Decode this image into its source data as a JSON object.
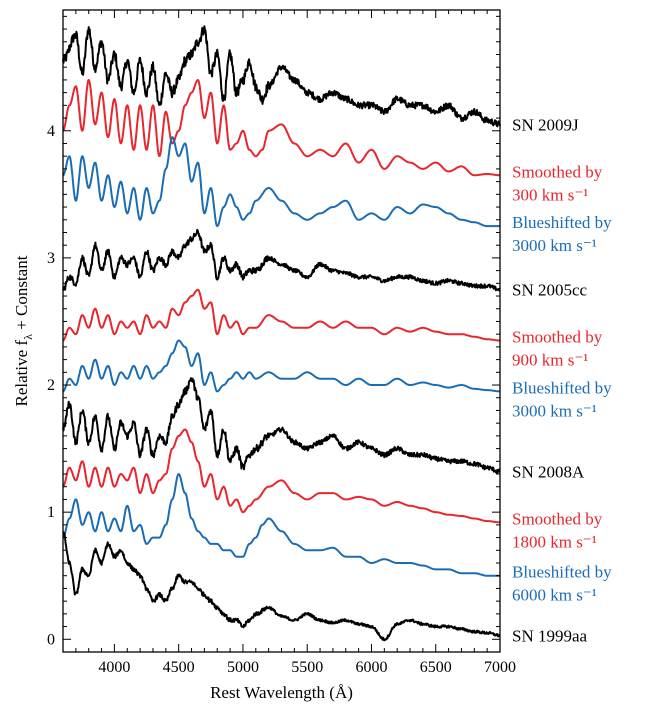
{
  "chart_data": {
    "type": "line",
    "xlabel": "Rest Wavelength (Å)",
    "ylabel_main": "Relative f",
    "ylabel_sub": "λ",
    "ylabel_rest": " + Constant",
    "xlim": [
      3600,
      7000
    ],
    "ylim": [
      -0.1,
      4.95
    ],
    "x_ticks": [
      4000,
      4500,
      5000,
      5500,
      6000,
      6500,
      7000
    ],
    "x_tick_labels": [
      "4000",
      "4500",
      "5000",
      "5500",
      "6000",
      "6500",
      "7000"
    ],
    "y_ticks": [
      0,
      1,
      2,
      3,
      4
    ],
    "y_tick_labels": [
      "0",
      "1",
      "2",
      "3",
      "4"
    ],
    "colors": {
      "observed": "#000000",
      "smoothed": "#e8262e",
      "blueshifted": "#1a6db5"
    },
    "series": [
      {
        "name": "SN 2009J",
        "role": "observed",
        "label": [
          "SN 2009J"
        ],
        "noise": 0.05,
        "x": [
          3600,
          3700,
          3750,
          3800,
          3850,
          3900,
          3950,
          4000,
          4050,
          4100,
          4150,
          4200,
          4250,
          4300,
          4350,
          4400,
          4450,
          4500,
          4550,
          4600,
          4650,
          4700,
          4750,
          4800,
          4850,
          4900,
          4950,
          5000,
          5050,
          5100,
          5150,
          5200,
          5300,
          5400,
          5500,
          5600,
          5700,
          5800,
          5900,
          6000,
          6100,
          6200,
          6300,
          6400,
          6500,
          6600,
          6700,
          6800,
          6900,
          7000
        ],
        "y": [
          4.55,
          4.75,
          4.45,
          4.8,
          4.5,
          4.7,
          4.4,
          4.6,
          4.35,
          4.55,
          4.3,
          4.55,
          4.3,
          4.5,
          4.2,
          4.45,
          4.3,
          4.4,
          4.55,
          4.6,
          4.7,
          4.8,
          4.45,
          4.6,
          4.25,
          4.6,
          4.3,
          4.4,
          4.55,
          4.35,
          4.25,
          4.35,
          4.5,
          4.4,
          4.3,
          4.25,
          4.3,
          4.25,
          4.2,
          4.2,
          4.15,
          4.25,
          4.2,
          4.2,
          4.15,
          4.2,
          4.1,
          4.15,
          4.08,
          4.05
        ]
      },
      {
        "name": "Smoothed by 300 km s⁻¹",
        "role": "smoothed",
        "label": [
          "Smoothed by",
          "300 km s⁻¹"
        ],
        "noise": 0,
        "x": [
          3600,
          3650,
          3700,
          3750,
          3800,
          3850,
          3900,
          3950,
          4000,
          4050,
          4100,
          4150,
          4200,
          4250,
          4300,
          4350,
          4400,
          4450,
          4500,
          4550,
          4600,
          4650,
          4700,
          4750,
          4800,
          4850,
          4900,
          4950,
          5000,
          5050,
          5100,
          5150,
          5200,
          5300,
          5400,
          5500,
          5600,
          5700,
          5800,
          5900,
          6000,
          6100,
          6200,
          6300,
          6400,
          6500,
          6600,
          6700,
          6800,
          6900,
          7000
        ],
        "y": [
          4.0,
          4.2,
          4.35,
          4.0,
          4.4,
          4.05,
          4.3,
          3.95,
          4.25,
          3.9,
          4.2,
          3.85,
          4.2,
          3.85,
          4.2,
          3.8,
          4.15,
          3.9,
          4.0,
          4.2,
          4.3,
          4.4,
          4.1,
          4.3,
          3.9,
          4.2,
          3.85,
          3.9,
          4.0,
          3.85,
          3.8,
          3.85,
          4.0,
          4.05,
          3.9,
          3.8,
          3.85,
          3.8,
          3.9,
          3.75,
          3.85,
          3.7,
          3.8,
          3.75,
          3.7,
          3.75,
          3.68,
          3.72,
          3.65,
          3.66,
          3.65
        ]
      },
      {
        "name": "Blueshifted by 3000 km s⁻¹",
        "role": "blueshifted",
        "label": [
          "Blueshifted by",
          "3000 km s⁻¹"
        ],
        "noise": 0,
        "x": [
          3600,
          3650,
          3700,
          3750,
          3800,
          3850,
          3900,
          3950,
          4000,
          4050,
          4100,
          4150,
          4200,
          4250,
          4300,
          4350,
          4400,
          4450,
          4500,
          4550,
          4600,
          4650,
          4700,
          4750,
          4800,
          4850,
          4900,
          4950,
          5000,
          5050,
          5100,
          5200,
          5300,
          5400,
          5500,
          5600,
          5700,
          5800,
          5900,
          6000,
          6100,
          6200,
          6300,
          6400,
          6500,
          6600,
          6700,
          6800,
          6900,
          7000
        ],
        "y": [
          3.65,
          3.8,
          3.45,
          3.8,
          3.55,
          3.75,
          3.45,
          3.65,
          3.4,
          3.6,
          3.35,
          3.55,
          3.3,
          3.55,
          3.35,
          3.45,
          3.7,
          3.95,
          3.8,
          3.9,
          3.6,
          3.75,
          3.35,
          3.55,
          3.25,
          3.4,
          3.5,
          3.4,
          3.3,
          3.35,
          3.45,
          3.55,
          3.45,
          3.35,
          3.3,
          3.35,
          3.4,
          3.45,
          3.3,
          3.35,
          3.3,
          3.4,
          3.35,
          3.42,
          3.4,
          3.35,
          3.3,
          3.28,
          3.25,
          3.25
        ]
      },
      {
        "name": "SN 2005cc",
        "role": "observed",
        "label": [
          "SN 2005cc"
        ],
        "noise": 0.03,
        "x": [
          3600,
          3650,
          3700,
          3750,
          3800,
          3850,
          3900,
          3950,
          4000,
          4050,
          4100,
          4150,
          4200,
          4250,
          4300,
          4350,
          4400,
          4450,
          4500,
          4550,
          4600,
          4650,
          4700,
          4750,
          4800,
          4850,
          4900,
          4950,
          5000,
          5050,
          5100,
          5200,
          5300,
          5400,
          5500,
          5600,
          5700,
          5800,
          5900,
          6000,
          6100,
          6200,
          6300,
          6400,
          6500,
          6600,
          6700,
          6800,
          6900,
          7000
        ],
        "y": [
          2.75,
          2.85,
          2.8,
          3.0,
          2.85,
          3.1,
          2.9,
          3.05,
          2.85,
          3.0,
          2.95,
          3.0,
          2.85,
          3.05,
          2.9,
          3.0,
          2.95,
          3.05,
          3.0,
          3.1,
          3.15,
          3.2,
          3.05,
          3.1,
          2.85,
          3.0,
          2.9,
          2.95,
          2.85,
          2.9,
          2.9,
          3.0,
          2.95,
          2.9,
          2.85,
          2.95,
          2.9,
          2.88,
          2.85,
          2.85,
          2.82,
          2.85,
          2.85,
          2.82,
          2.8,
          2.82,
          2.8,
          2.78,
          2.78,
          2.75
        ]
      },
      {
        "name": "Smoothed by 900 km s⁻¹",
        "role": "smoothed",
        "label": [
          "Smoothed by",
          "900 km s⁻¹"
        ],
        "noise": 0,
        "x": [
          3600,
          3650,
          3700,
          3750,
          3800,
          3850,
          3900,
          3950,
          4000,
          4050,
          4100,
          4150,
          4200,
          4250,
          4300,
          4350,
          4400,
          4450,
          4500,
          4550,
          4600,
          4650,
          4700,
          4750,
          4800,
          4850,
          4900,
          4950,
          5000,
          5050,
          5100,
          5200,
          5300,
          5400,
          5500,
          5600,
          5700,
          5800,
          5900,
          6000,
          6100,
          6200,
          6300,
          6400,
          6500,
          6600,
          6700,
          6800,
          6900,
          7000
        ],
        "y": [
          2.35,
          2.45,
          2.4,
          2.55,
          2.45,
          2.6,
          2.45,
          2.55,
          2.4,
          2.5,
          2.45,
          2.5,
          2.4,
          2.55,
          2.45,
          2.5,
          2.45,
          2.6,
          2.55,
          2.65,
          2.7,
          2.75,
          2.6,
          2.65,
          2.4,
          2.55,
          2.45,
          2.5,
          2.4,
          2.45,
          2.45,
          2.55,
          2.5,
          2.45,
          2.45,
          2.5,
          2.45,
          2.5,
          2.45,
          2.45,
          2.4,
          2.45,
          2.42,
          2.45,
          2.42,
          2.4,
          2.4,
          2.38,
          2.36,
          2.35
        ]
      },
      {
        "name": "Blueshifted by 3000 km s⁻¹",
        "role": "blueshifted",
        "label": [
          "Blueshifted by",
          "3000 km s⁻¹"
        ],
        "noise": 0,
        "x": [
          3600,
          3650,
          3700,
          3750,
          3800,
          3850,
          3900,
          3950,
          4000,
          4050,
          4100,
          4150,
          4200,
          4250,
          4300,
          4350,
          4400,
          4450,
          4500,
          4550,
          4600,
          4650,
          4700,
          4750,
          4800,
          4850,
          4900,
          4950,
          5000,
          5050,
          5100,
          5200,
          5300,
          5400,
          5500,
          5600,
          5700,
          5800,
          5900,
          6000,
          6100,
          6200,
          6300,
          6400,
          6500,
          6600,
          6700,
          6800,
          6900,
          7000
        ],
        "y": [
          1.95,
          2.05,
          2.0,
          2.15,
          2.05,
          2.2,
          2.05,
          2.15,
          2.0,
          2.1,
          2.05,
          2.15,
          2.05,
          2.15,
          2.05,
          2.1,
          2.15,
          2.25,
          2.35,
          2.3,
          2.15,
          2.25,
          2.0,
          2.1,
          1.95,
          2.0,
          2.05,
          2.1,
          2.05,
          2.1,
          2.05,
          2.1,
          2.05,
          2.05,
          2.1,
          2.05,
          2.05,
          2.0,
          2.05,
          2.0,
          2.0,
          2.05,
          2.0,
          2.02,
          2.0,
          1.98,
          2.0,
          1.97,
          1.96,
          1.95
        ]
      },
      {
        "name": "SN 2008A",
        "role": "observed",
        "label": [
          "SN 2008A"
        ],
        "noise": 0.035,
        "x": [
          3600,
          3650,
          3700,
          3750,
          3800,
          3850,
          3900,
          3950,
          4000,
          4050,
          4100,
          4150,
          4200,
          4250,
          4300,
          4350,
          4400,
          4450,
          4500,
          4550,
          4600,
          4650,
          4700,
          4750,
          4800,
          4850,
          4900,
          4950,
          5000,
          5050,
          5100,
          5200,
          5300,
          5400,
          5500,
          5600,
          5700,
          5800,
          5900,
          6000,
          6100,
          6200,
          6300,
          6400,
          6500,
          6600,
          6700,
          6800,
          6900,
          7000
        ],
        "y": [
          1.65,
          1.85,
          1.55,
          1.8,
          1.55,
          1.75,
          1.5,
          1.75,
          1.5,
          1.7,
          1.6,
          1.7,
          1.45,
          1.65,
          1.45,
          1.6,
          1.55,
          1.75,
          1.85,
          1.95,
          2.05,
          1.9,
          1.65,
          1.8,
          1.45,
          1.65,
          1.4,
          1.5,
          1.35,
          1.45,
          1.5,
          1.6,
          1.65,
          1.55,
          1.5,
          1.55,
          1.6,
          1.5,
          1.55,
          1.5,
          1.45,
          1.5,
          1.45,
          1.45,
          1.42,
          1.4,
          1.4,
          1.38,
          1.35,
          1.32
        ]
      },
      {
        "name": "Smoothed by 1800 km s⁻¹",
        "role": "smoothed",
        "label": [
          "Smoothed by",
          "1800 km s⁻¹"
        ],
        "noise": 0,
        "x": [
          3600,
          3650,
          3700,
          3750,
          3800,
          3850,
          3900,
          3950,
          4000,
          4050,
          4100,
          4150,
          4200,
          4250,
          4300,
          4350,
          4400,
          4450,
          4500,
          4550,
          4600,
          4650,
          4700,
          4750,
          4800,
          4850,
          4900,
          4950,
          5000,
          5050,
          5100,
          5200,
          5300,
          5400,
          5500,
          5600,
          5700,
          5800,
          5900,
          6000,
          6100,
          6200,
          6300,
          6400,
          6500,
          6600,
          6700,
          6800,
          6900,
          7000
        ],
        "y": [
          1.2,
          1.35,
          1.25,
          1.4,
          1.2,
          1.35,
          1.2,
          1.35,
          1.2,
          1.3,
          1.25,
          1.35,
          1.15,
          1.3,
          1.15,
          1.25,
          1.3,
          1.5,
          1.6,
          1.65,
          1.55,
          1.4,
          1.2,
          1.3,
          1.1,
          1.2,
          1.05,
          1.1,
          1.0,
          1.05,
          1.1,
          1.2,
          1.25,
          1.15,
          1.1,
          1.15,
          1.15,
          1.1,
          1.12,
          1.1,
          1.05,
          1.08,
          1.05,
          1.03,
          1.0,
          0.98,
          0.97,
          0.95,
          0.93,
          0.92
        ]
      },
      {
        "name": "Blueshifted by 6000 km s⁻¹",
        "role": "blueshifted",
        "label": [
          "Blueshifted by",
          "6000 km s⁻¹"
        ],
        "noise": 0,
        "x": [
          3600,
          3650,
          3700,
          3750,
          3800,
          3850,
          3900,
          3950,
          4000,
          4050,
          4100,
          4150,
          4200,
          4250,
          4300,
          4350,
          4400,
          4450,
          4500,
          4550,
          4600,
          4650,
          4700,
          4750,
          4800,
          4850,
          4900,
          4950,
          5000,
          5050,
          5100,
          5150,
          5200,
          5300,
          5400,
          5500,
          5600,
          5700,
          5800,
          5900,
          6000,
          6100,
          6200,
          6300,
          6400,
          6500,
          6600,
          6700,
          6800,
          6900,
          7000
        ],
        "y": [
          0.8,
          0.95,
          1.1,
          0.9,
          1.0,
          0.85,
          1.0,
          0.85,
          0.95,
          0.85,
          1.05,
          0.85,
          0.9,
          0.75,
          0.8,
          0.8,
          0.9,
          1.1,
          1.3,
          1.15,
          0.95,
          0.85,
          0.8,
          0.75,
          0.75,
          0.7,
          0.7,
          0.65,
          0.65,
          0.75,
          0.8,
          0.9,
          0.95,
          0.85,
          0.75,
          0.7,
          0.7,
          0.72,
          0.65,
          0.65,
          0.6,
          0.63,
          0.6,
          0.6,
          0.58,
          0.55,
          0.55,
          0.52,
          0.52,
          0.5,
          0.5
        ]
      },
      {
        "name": "SN 1999aa",
        "role": "observed",
        "label": [
          "SN 1999aa"
        ],
        "noise": 0.02,
        "x": [
          3600,
          3650,
          3700,
          3750,
          3800,
          3850,
          3900,
          3950,
          4000,
          4050,
          4100,
          4150,
          4200,
          4250,
          4300,
          4350,
          4400,
          4450,
          4500,
          4550,
          4600,
          4650,
          4700,
          4750,
          4800,
          4850,
          4900,
          4950,
          5000,
          5050,
          5100,
          5200,
          5300,
          5400,
          5500,
          5600,
          5700,
          5800,
          5900,
          6000,
          6100,
          6200,
          6300,
          6400,
          6500,
          6600,
          6700,
          6800,
          6900,
          7000
        ],
        "y": [
          0.85,
          0.6,
          0.35,
          0.55,
          0.5,
          0.7,
          0.6,
          0.75,
          0.65,
          0.7,
          0.6,
          0.55,
          0.5,
          0.4,
          0.3,
          0.35,
          0.3,
          0.4,
          0.5,
          0.45,
          0.45,
          0.4,
          0.35,
          0.3,
          0.25,
          0.2,
          0.15,
          0.15,
          0.1,
          0.15,
          0.2,
          0.25,
          0.18,
          0.15,
          0.2,
          0.15,
          0.13,
          0.15,
          0.12,
          0.1,
          0.0,
          0.12,
          0.15,
          0.12,
          0.1,
          0.1,
          0.08,
          0.06,
          0.05,
          0.03
        ]
      }
    ]
  }
}
